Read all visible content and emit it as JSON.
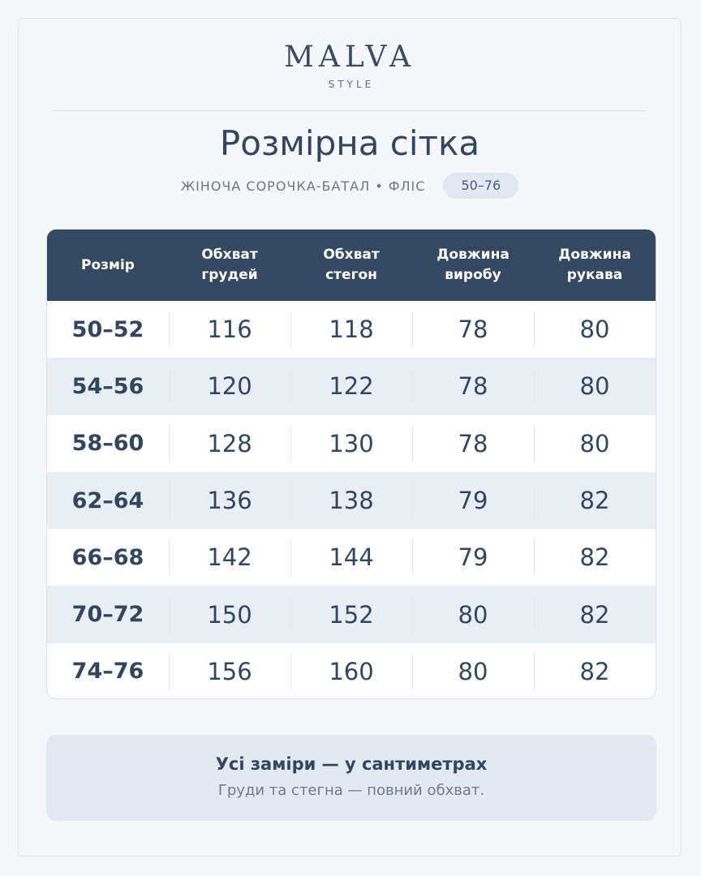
{
  "brand": {
    "name": "MALVA",
    "tagline": "STYLE"
  },
  "title": "Розмірна сітка",
  "subtitle": "ЖІНОЧА СОРОЧКА-БАТАЛ • ФЛІС",
  "size_range": "50–76",
  "table": {
    "headers": [
      "Розмір",
      "Обхват\nгрудей",
      "Обхват\nстегон",
      "Довжина\nвиробу",
      "Довжина\nрукава"
    ],
    "rows": [
      [
        "50–52",
        "116",
        "118",
        "78",
        "80"
      ],
      [
        "54–56",
        "120",
        "122",
        "78",
        "80"
      ],
      [
        "58–60",
        "128",
        "130",
        "78",
        "80"
      ],
      [
        "62–64",
        "136",
        "138",
        "79",
        "82"
      ],
      [
        "66–68",
        "142",
        "144",
        "79",
        "82"
      ],
      [
        "70–72",
        "150",
        "152",
        "80",
        "82"
      ],
      [
        "74–76",
        "156",
        "160",
        "80",
        "82"
      ]
    ]
  },
  "note": {
    "title": "Усі заміри — у сантиметрах",
    "text": "Груди та стегна — повний обхват."
  },
  "colors": {
    "header_bg": "#34495f",
    "text": "#34465e",
    "row_alt": "#e9eef5",
    "note_bg": "#e3e9f1"
  }
}
